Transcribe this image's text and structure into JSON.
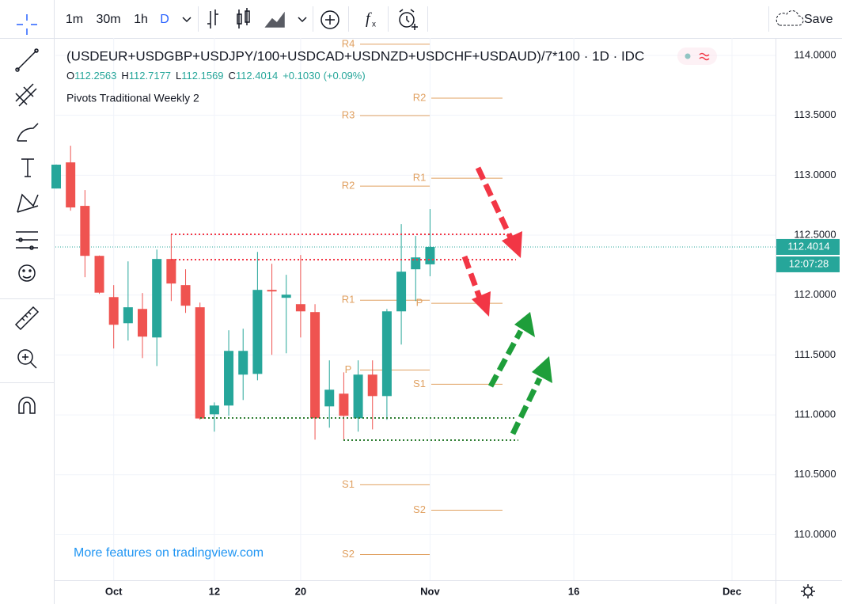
{
  "ui": {
    "intervals": [
      "1m",
      "30m",
      "1h",
      "D"
    ],
    "save": "Save",
    "countdown": "12:07:28",
    "watermark": "More features on tradingview.com"
  },
  "chart_data": {
    "type": "candlestick",
    "title": "(USDEUR+USDGBP+USDJPY/100+USDCAD+USDNZD+USDCHF+USDAUD)/7*100 · 1D · IDC",
    "legend": {
      "o": "O",
      "h": "H",
      "l": "L",
      "c": "C",
      "change": "+0.1030",
      "change_pct": "(+0.09%)"
    },
    "indicator": "Pivots Traditional Weekly 2",
    "categories": [
      null,
      null,
      null,
      null,
      "Oct",
      null,
      null,
      null,
      null,
      null,
      null,
      "12",
      null,
      null,
      null,
      null,
      null,
      "20",
      null,
      null,
      null,
      null,
      null,
      null,
      null,
      null,
      "Nov"
    ],
    "future_labels": [
      "16",
      "Dec"
    ],
    "open": [
      112.889,
      113.107,
      112.744,
      112.327,
      111.983,
      111.765,
      111.884,
      111.646,
      112.301,
      112.083,
      111.898,
      111.005,
      111.078,
      111.336,
      111.342,
      112.043,
      111.977,
      111.924,
      111.858,
      111.071,
      111.177,
      110.972,
      111.336,
      111.157,
      111.864,
      112.215,
      112.2563
    ],
    "high": [
      113.09,
      113.246,
      112.876,
      112.33,
      112.083,
      112.281,
      112.017,
      112.38,
      112.506,
      112.215,
      111.937,
      111.104,
      111.706,
      111.719,
      112.36,
      112.261,
      112.169,
      112.334,
      111.924,
      111.455,
      111.355,
      111.455,
      111.455,
      111.884,
      112.592,
      112.493,
      112.7177
    ],
    "low": [
      112.889,
      112.704,
      112.149,
      112.01,
      111.554,
      111.62,
      111.474,
      111.408,
      111.95,
      111.851,
      110.96,
      110.86,
      110.992,
      111.124,
      111.289,
      111.501,
      111.514,
      111.646,
      110.793,
      110.893,
      110.793,
      110.86,
      110.879,
      110.959,
      111.587,
      111.95,
      112.1569
    ],
    "close": [
      113.088,
      112.731,
      112.327,
      112.02,
      111.752,
      111.898,
      111.653,
      112.301,
      112.096,
      111.911,
      110.97,
      111.078,
      111.534,
      111.534,
      112.043,
      112.03,
      112.003,
      111.864,
      110.972,
      111.21,
      110.992,
      111.336,
      111.157,
      111.864,
      112.195,
      112.314,
      112.4014
    ],
    "up_color": "#26a69a",
    "down_color": "#ef5350",
    "pivots": [
      {
        "color": "#e0a060",
        "levels": [
          {
            "label": "R4",
            "value": 114.093
          },
          {
            "label": "R3",
            "value": 113.498
          },
          {
            "label": "R2",
            "value": 112.909
          },
          {
            "label": "R1",
            "value": 111.957
          },
          {
            "label": "P",
            "value": 111.375
          },
          {
            "label": "S1",
            "value": 110.417
          },
          {
            "label": "S2",
            "value": 109.835
          }
        ]
      },
      {
        "color": "#e0a060",
        "levels": [
          {
            "label": "R2",
            "value": 113.643
          },
          {
            "label": "R1",
            "value": 112.975
          },
          {
            "label": "P",
            "value": 111.931
          },
          {
            "label": "S1",
            "value": 111.256
          },
          {
            "label": "S2",
            "value": 110.205
          }
        ]
      }
    ],
    "ylim": [
      109.62,
      114.145
    ],
    "yticks": [
      {
        "value": 110,
        "label": "110.0000"
      },
      {
        "value": 110.5,
        "label": "110.5000"
      },
      {
        "value": 111,
        "label": "111.0000"
      },
      {
        "value": 111.5,
        "label": "111.5000"
      },
      {
        "value": 112,
        "label": "112.0000"
      },
      {
        "value": 112.5,
        "label": "112.5000"
      },
      {
        "value": 113,
        "label": "113.0000"
      },
      {
        "value": 113.5,
        "label": "113.5000"
      },
      {
        "value": 114,
        "label": "114.0000"
      }
    ],
    "grid": true
  }
}
